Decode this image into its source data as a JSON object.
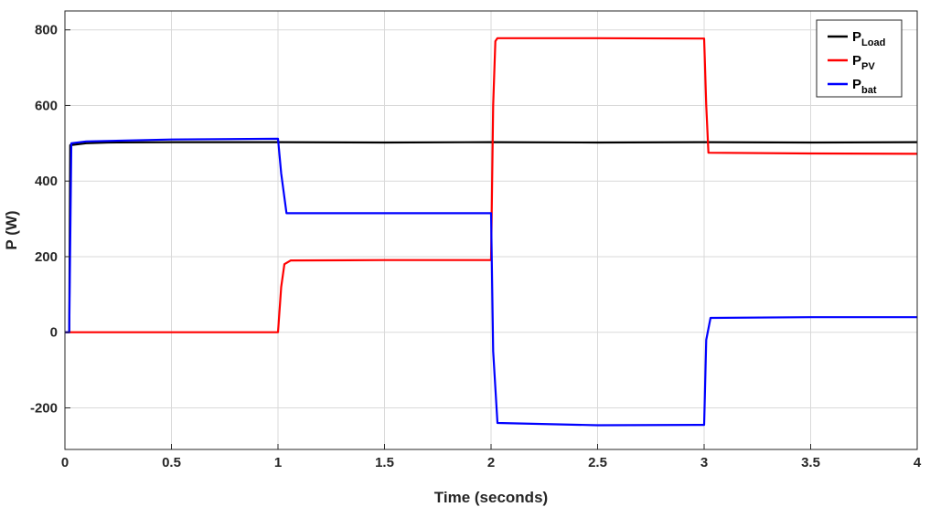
{
  "chart_data": {
    "type": "line",
    "xlabel": "Time (seconds)",
    "ylabel": "P (W)",
    "xlim": [
      0,
      4
    ],
    "ylim": [
      -310,
      850
    ],
    "xticks": [
      0,
      0.5,
      1,
      1.5,
      2,
      2.5,
      3,
      3.5,
      4
    ],
    "xtick_labels": [
      "0",
      "0.5",
      "1",
      "1.5",
      "2",
      "2.5",
      "3",
      "3.5",
      "4"
    ],
    "yticks": [
      -200,
      0,
      200,
      400,
      600,
      800
    ],
    "ytick_labels": [
      "-200",
      "0",
      "200",
      "400",
      "600",
      "800"
    ],
    "grid": true,
    "legend_position": "top-right",
    "series": [
      {
        "name": "P_Load",
        "label_main": "P",
        "label_sub": "Load",
        "color": "#000000",
        "x": [
          0,
          0.02,
          0.025,
          0.1,
          0.2,
          0.5,
          1.0,
          1.5,
          2.0,
          2.5,
          3.0,
          3.5,
          4.0
        ],
        "y": [
          0,
          0,
          495,
          500,
          502,
          503,
          503,
          502,
          503,
          502,
          503,
          502,
          503
        ]
      },
      {
        "name": "P_PV",
        "label_main": "P",
        "label_sub": "PV",
        "color": "#ff0000",
        "x": [
          0,
          1.0,
          1.015,
          1.03,
          1.06,
          1.5,
          2.0,
          2.01,
          2.02,
          2.03,
          2.5,
          3.0,
          3.01,
          3.02,
          3.5,
          4.0
        ],
        "y": [
          0,
          0,
          120,
          180,
          190,
          191,
          191,
          600,
          770,
          778,
          778,
          777,
          600,
          475,
          473,
          472
        ]
      },
      {
        "name": "P_bat",
        "label_main": "P",
        "label_sub": "bat",
        "color": "#0000ff",
        "x": [
          0,
          0.02,
          0.03,
          0.1,
          0.5,
          1.0,
          1.015,
          1.04,
          1.5,
          2.0,
          2.01,
          2.03,
          2.5,
          3.0,
          3.01,
          3.03,
          3.5,
          4.0
        ],
        "y": [
          0,
          0,
          500,
          505,
          510,
          512,
          420,
          315,
          315,
          315,
          -50,
          -240,
          -246,
          -245,
          -20,
          38,
          40,
          40
        ]
      }
    ]
  }
}
